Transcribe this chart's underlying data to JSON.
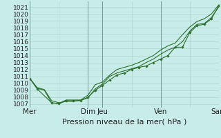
{
  "title": "",
  "xlabel": "Pression niveau de la mer( hPa )",
  "bg_color": "#c8ece8",
  "grid_color": "#b0d4ce",
  "line_color": "#2d6e2d",
  "marker_color": "#2d6e2d",
  "ylim": [
    1006.5,
    1021.8
  ],
  "yticks": [
    1007,
    1008,
    1009,
    1010,
    1011,
    1012,
    1013,
    1014,
    1015,
    1016,
    1017,
    1018,
    1019,
    1020,
    1021
  ],
  "xtick_labels": [
    "Mer",
    "",
    "Dim",
    "Jeu",
    "",
    "Ven",
    "",
    "Sam"
  ],
  "xtick_positions": [
    0,
    2,
    4,
    5,
    7,
    9,
    11,
    13
  ],
  "vline_positions": [
    0,
    4,
    5,
    9,
    13
  ],
  "line1_x": [
    0,
    0.5,
    1.5,
    2.0,
    2.5,
    3.0,
    3.5,
    4.0,
    4.5,
    5.0,
    5.5,
    6.0,
    6.5,
    7.0,
    7.5,
    8.0,
    8.5,
    9.0,
    9.5,
    10.0,
    10.5,
    11.0,
    11.5,
    12.0,
    12.5,
    13.0
  ],
  "line1_y": [
    1010.7,
    1009.2,
    1007.2,
    1007.05,
    1007.5,
    1007.5,
    1007.5,
    1008.0,
    1009.0,
    1009.7,
    1010.5,
    1011.2,
    1011.5,
    1012.0,
    1012.3,
    1012.5,
    1013.0,
    1013.5,
    1014.0,
    1015.2,
    1015.2,
    1017.3,
    1018.3,
    1018.5,
    1019.3,
    1021.2
  ],
  "line2_x": [
    0,
    0.5,
    1.0,
    1.5,
    2.0,
    2.5,
    3.0,
    3.5,
    4.0,
    4.5,
    5.0,
    5.5,
    6.0,
    6.5,
    7.0,
    7.5,
    8.0,
    8.5,
    9.0,
    9.5,
    10.0,
    10.5,
    11.0,
    11.5,
    12.0,
    12.5,
    13.0
  ],
  "line2_y": [
    1010.7,
    1009.3,
    1009.0,
    1007.2,
    1007.1,
    1007.6,
    1007.6,
    1007.6,
    1007.9,
    1009.2,
    1009.9,
    1011.0,
    1011.5,
    1011.8,
    1012.1,
    1012.4,
    1013.0,
    1013.5,
    1014.2,
    1014.8,
    1015.2,
    1016.0,
    1017.5,
    1018.5,
    1018.6,
    1019.5,
    1021.0
  ],
  "line3_x": [
    0,
    0.5,
    1.0,
    1.5,
    2.0,
    2.5,
    3.0,
    3.5,
    4.0,
    4.5,
    5.0,
    5.5,
    6.0,
    6.5,
    7.0,
    7.5,
    8.0,
    8.5,
    9.0,
    9.5,
    10.0,
    10.5,
    11.0,
    11.5,
    12.0,
    12.5,
    13.0
  ],
  "line3_y": [
    1010.7,
    1009.4,
    1009.1,
    1007.5,
    1007.2,
    1007.4,
    1007.4,
    1007.6,
    1008.3,
    1009.8,
    1010.2,
    1011.2,
    1012.0,
    1012.3,
    1012.6,
    1013.0,
    1013.5,
    1014.0,
    1014.8,
    1015.4,
    1015.8,
    1017.0,
    1018.1,
    1018.9,
    1019.3,
    1020.0,
    1021.3
  ],
  "xlabel_fontsize": 8,
  "ytick_fontsize": 6.5,
  "xtick_fontsize": 7.5
}
